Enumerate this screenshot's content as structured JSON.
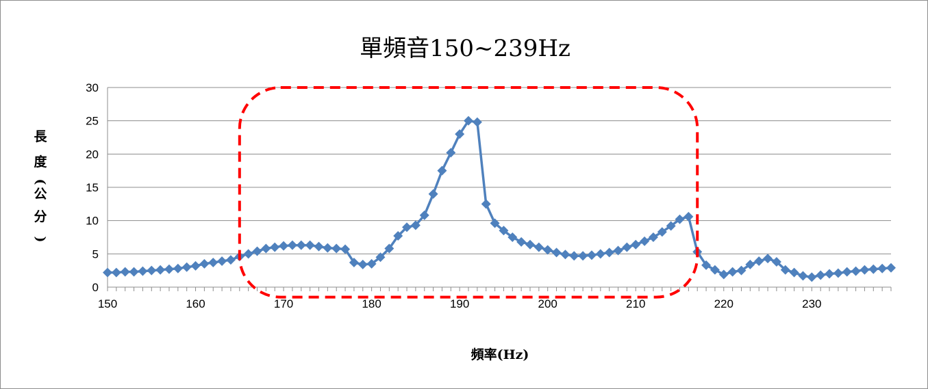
{
  "chart_data": {
    "type": "line",
    "title": "單頻音150~239Hz",
    "xlabel": "頻率(Hz)",
    "ylabel": "長度(公分)",
    "xlim": [
      150,
      239
    ],
    "ylim": [
      0,
      30
    ],
    "xticks": [
      150,
      160,
      170,
      180,
      190,
      200,
      210,
      220,
      230
    ],
    "yticks": [
      0,
      5,
      10,
      15,
      20,
      25,
      30
    ],
    "grid": "horizontal",
    "legend": "none",
    "series_color": "#4f81bd",
    "marker": "diamond",
    "highlight_box": {
      "x_range": [
        165,
        217
      ],
      "y_range": [
        -1.5,
        30
      ],
      "color": "#ff0000",
      "style": "dashed-rounded"
    },
    "series": [
      {
        "x": [
          150,
          151,
          152,
          153,
          154,
          155,
          156,
          157,
          158,
          159,
          160,
          161,
          162,
          163,
          164,
          165,
          166,
          167,
          168,
          169,
          170,
          171,
          172,
          173,
          174,
          175,
          176,
          177,
          178,
          179,
          180,
          181,
          182,
          183,
          184,
          185,
          186,
          187,
          188,
          189,
          190,
          191,
          192,
          193,
          194,
          195,
          196,
          197,
          198,
          199,
          200,
          201,
          202,
          203,
          204,
          205,
          206,
          207,
          208,
          209,
          210,
          211,
          212,
          213,
          214,
          215,
          216,
          217,
          218,
          219,
          220,
          221,
          222,
          223,
          224,
          225,
          226,
          227,
          228,
          229,
          230,
          231,
          232,
          233,
          234,
          235,
          236,
          237,
          238,
          239
        ],
        "values": [
          2.2,
          2.2,
          2.3,
          2.3,
          2.4,
          2.5,
          2.6,
          2.7,
          2.8,
          3.0,
          3.2,
          3.5,
          3.7,
          3.9,
          4.1,
          4.6,
          5.0,
          5.4,
          5.8,
          6.0,
          6.2,
          6.3,
          6.3,
          6.3,
          6.1,
          5.9,
          5.8,
          5.7,
          3.7,
          3.4,
          3.5,
          4.5,
          5.8,
          7.7,
          9.0,
          9.3,
          10.8,
          14.0,
          17.5,
          20.2,
          23.0,
          25.0,
          24.8,
          12.5,
          9.6,
          8.5,
          7.5,
          6.8,
          6.4,
          6.0,
          5.6,
          5.2,
          4.9,
          4.7,
          4.7,
          4.8,
          5.0,
          5.2,
          5.5,
          6.0,
          6.4,
          6.9,
          7.5,
          8.3,
          9.2,
          10.2,
          10.6,
          5.3,
          3.3,
          2.6,
          1.9,
          2.3,
          2.5,
          3.4,
          3.9,
          4.3,
          3.8,
          2.6,
          2.2,
          1.7,
          1.5,
          1.8,
          2.0,
          2.1,
          2.3,
          2.4,
          2.6,
          2.7,
          2.8,
          2.9
        ]
      }
    ]
  }
}
